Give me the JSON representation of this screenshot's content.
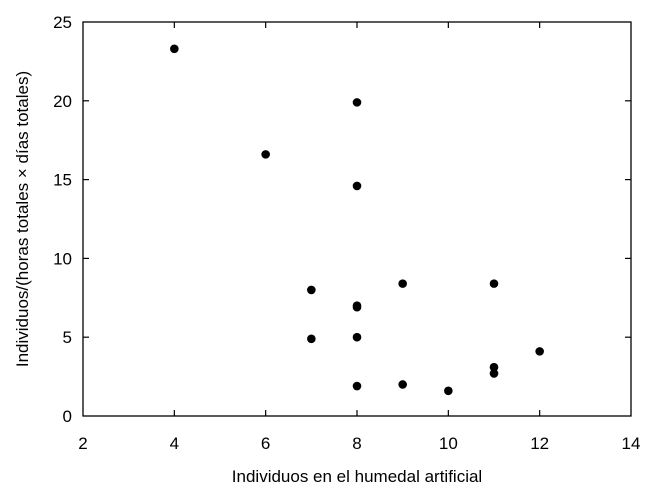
{
  "chart_data": {
    "type": "scatter",
    "xlabel": "Individuos en el humedal artificial",
    "ylabel": "Individuos/(horas totales × días totales)",
    "xlim": [
      2,
      14
    ],
    "ylim": [
      0,
      25
    ],
    "x_ticks": [
      "2",
      "4",
      "6",
      "8",
      "10",
      "12",
      "14"
    ],
    "y_ticks": [
      "0",
      "5",
      "10",
      "15",
      "20",
      "25"
    ],
    "grid": false,
    "marker_color": "#000000",
    "points": [
      {
        "x": 4,
        "y": 23.3
      },
      {
        "x": 6,
        "y": 16.6
      },
      {
        "x": 7,
        "y": 8.0
      },
      {
        "x": 7,
        "y": 4.9
      },
      {
        "x": 8,
        "y": 19.9
      },
      {
        "x": 8,
        "y": 14.6
      },
      {
        "x": 8,
        "y": 7.0
      },
      {
        "x": 8,
        "y": 6.9
      },
      {
        "x": 8,
        "y": 5.0
      },
      {
        "x": 8,
        "y": 1.9
      },
      {
        "x": 9,
        "y": 8.4
      },
      {
        "x": 9,
        "y": 2.0
      },
      {
        "x": 10,
        "y": 1.6
      },
      {
        "x": 11,
        "y": 8.4
      },
      {
        "x": 11,
        "y": 3.1
      },
      {
        "x": 11,
        "y": 2.7
      },
      {
        "x": 12,
        "y": 4.1
      }
    ]
  }
}
